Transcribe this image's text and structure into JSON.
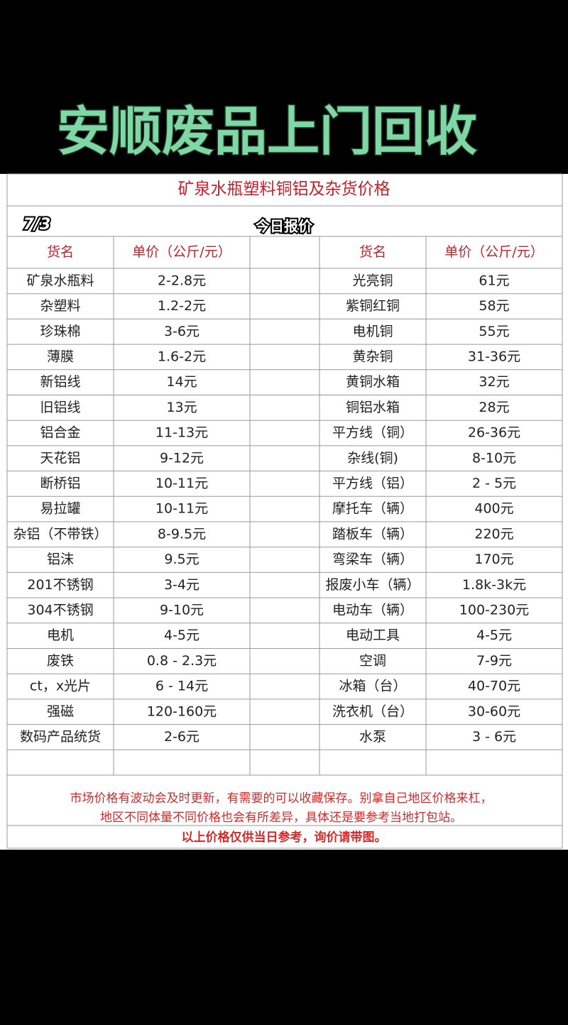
{
  "header": {
    "title": "安顺废品上门回收"
  },
  "sheet": {
    "title": "矿泉水瓶塑料铜铝及杂货价格",
    "date": "7/3",
    "subtitle": "今日报价"
  },
  "table": {
    "headers": [
      "货名",
      "单价（公斤/元）",
      "货名",
      "单价（公斤/元）"
    ],
    "rows": [
      [
        "矿泉水瓶料",
        "2-2.8元",
        "光亮铜",
        "61元"
      ],
      [
        "杂塑料",
        "1.2-2元",
        "紫铜红铜",
        "58元"
      ],
      [
        "珍珠棉",
        "3-6元",
        "电机铜",
        "55元"
      ],
      [
        "薄膜",
        "1.6-2元",
        "黄杂铜",
        "31-36元"
      ],
      [
        "新铝线",
        "14元",
        "黄铜水箱",
        "32元"
      ],
      [
        "旧铝线",
        "13元",
        "铜铝水箱",
        "28元"
      ],
      [
        "铝合金",
        "11-13元",
        "平方线（铜）",
        "26-36元"
      ],
      [
        "天花铝",
        "9-12元",
        "杂线(铜)",
        "8-10元"
      ],
      [
        "断桥铝",
        "10-11元",
        "平方线（铝）",
        "2 - 5元"
      ],
      [
        "易拉罐",
        "10-11元",
        "摩托车（辆）",
        "400元"
      ],
      [
        "杂铝（不带铁）",
        "8-9.5元",
        "踏板车（辆）",
        "220元"
      ],
      [
        "铝沫",
        "9.5元",
        "弯梁车（辆）",
        "170元"
      ],
      [
        "201不锈钢",
        "3-4元",
        "报废小车（辆）",
        "1.8k-3k元"
      ],
      [
        "304不锈钢",
        "9-10元",
        "电动车（辆）",
        "100-230元"
      ],
      [
        "电机",
        "4-5元",
        "电动工具",
        "4-5元"
      ],
      [
        "废铁",
        "0.8 - 2.3元",
        "空调",
        "7-9元"
      ],
      [
        "ct，x光片",
        "6 - 14元",
        "冰箱（台）",
        "40-70元"
      ],
      [
        "强磁",
        "120-160元",
        "洗衣机（台）",
        "30-60元"
      ],
      [
        "数码产品统货",
        "2-6元",
        "水泵",
        "3 - 6元"
      ]
    ]
  },
  "notes": [
    "市场价格有波动会及时更新，有需要的可以收藏保存。别拿自己地区价格来杠，",
    "地区不同体量不同价格也会有所差异，具体还是要参考当地打包站。"
  ],
  "footer": "以上价格仅供当日参考，询价请带图。"
}
